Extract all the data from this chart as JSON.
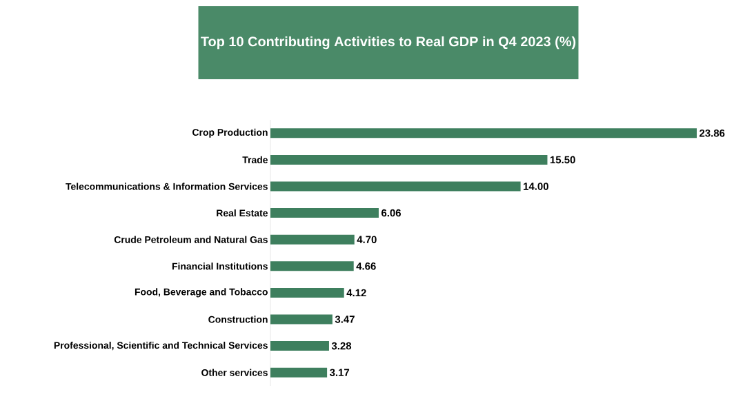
{
  "chart_data": {
    "type": "bar",
    "orientation": "horizontal",
    "title": "Top 10 Contributing Activities to Real GDP in Q4 2023 (%)",
    "categories": [
      "Crop Production",
      "Trade",
      "Telecommunications & Information Services",
      "Real Estate",
      "Crude Petroleum and Natural Gas",
      "Financial Institutions",
      "Food, Beverage and Tobacco",
      "Construction",
      "Professional, Scientific and Technical Services",
      "Other services"
    ],
    "values": [
      23.86,
      15.5,
      14.0,
      6.06,
      4.7,
      4.66,
      4.12,
      3.47,
      3.28,
      3.17
    ],
    "value_labels": [
      "23.86",
      "15.50",
      "14.00",
      "6.06",
      "4.70",
      "4.66",
      "4.12",
      "3.47",
      "3.28",
      "3.17"
    ],
    "color": "#3e7f5e"
  }
}
